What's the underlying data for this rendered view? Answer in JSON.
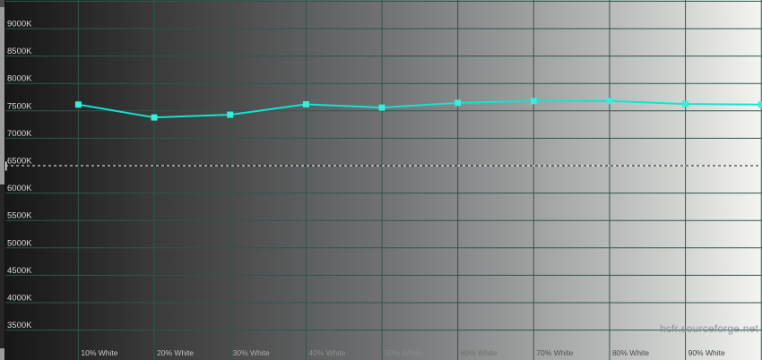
{
  "watermark": {
    "text": "hcfr.sourceforge.net",
    "color": "#8b9399"
  },
  "chart_data": {
    "type": "line",
    "title": "",
    "x_axis": {
      "unit": "% White",
      "values_percent": [
        10,
        20,
        30,
        40,
        50,
        60,
        70,
        80,
        90,
        100
      ],
      "tick_labels": [
        {
          "label": "10% White",
          "color": "#c7c9c7"
        },
        {
          "label": "20% White",
          "color": "#bfc1bf"
        },
        {
          "label": "30% White",
          "color": "#aaacaa"
        },
        {
          "label": "40% White",
          "color": "#90928f"
        },
        {
          "label": "50% White",
          "color": "#8a8c8a"
        },
        {
          "label": "60% White",
          "color": "#6f716f"
        },
        {
          "label": "70% White",
          "color": "#525452"
        },
        {
          "label": "80% White",
          "color": "#4a4c4a"
        },
        {
          "label": "90% White",
          "color": "#414341"
        }
      ]
    },
    "y_axis": {
      "unit": "K",
      "tick_step": 500,
      "top_line_value": 9500,
      "bottom_line_value": 3500,
      "tick_labels": [
        {
          "value": 9000,
          "label": "9000K"
        },
        {
          "value": 8500,
          "label": "8500K"
        },
        {
          "value": 8000,
          "label": "8000K"
        },
        {
          "value": 7500,
          "label": "7500K"
        },
        {
          "value": 7000,
          "label": "7000K"
        },
        {
          "value": 6500,
          "label": "6500K"
        },
        {
          "value": 6000,
          "label": "6000K"
        },
        {
          "value": 5500,
          "label": "5500K"
        },
        {
          "value": 5000,
          "label": "5000K"
        },
        {
          "value": 4500,
          "label": "4500K"
        },
        {
          "value": 4000,
          "label": "4000K"
        },
        {
          "value": 3500,
          "label": "3500K"
        }
      ],
      "label_color": "#d9d9d9"
    },
    "series": [
      {
        "name": "measured-color-temperature",
        "line_color": "#0de6d2",
        "marker_color": "#3aecd9",
        "values_kelvin": [
          7615,
          7380,
          7430,
          7620,
          7560,
          7645,
          7680,
          7680,
          7625,
          7615
        ]
      }
    ],
    "reference_line": {
      "value": 6500,
      "label": "6500K",
      "dash_color": "#f5f5f5",
      "gap_color": "#1a1a1a",
      "marker_color": "#f2f2f2"
    },
    "grid": {
      "on": true,
      "color": "#2e564c"
    },
    "background_gradient": {
      "direction": "left-to-right",
      "offsets_percent": [
        0,
        10.3,
        20.2,
        30.2,
        40.1,
        50.1,
        60.1,
        70.0,
        80.0,
        90.0,
        100
      ],
      "stops": [
        "#161616",
        "#272727",
        "#3a3a3a",
        "#4b4b4c",
        "#5d5e5f",
        "#707173",
        "#868889",
        "#9fa1a1",
        "#b8bab9",
        "#d4d6d4",
        "#f4f5f3"
      ]
    }
  }
}
